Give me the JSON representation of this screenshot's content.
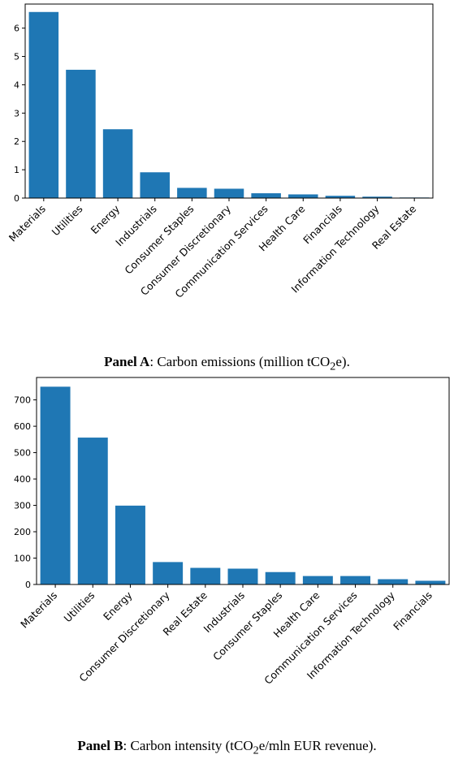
{
  "captions": {
    "a_label": "Panel A",
    "a_text": ": Carbon emissions (million tCO",
    "a_sub": "2",
    "a_tail": "e).",
    "b_label": "Panel B",
    "b_text": ": Carbon intensity (tCO",
    "b_sub": "2",
    "b_tail": "e/mln EUR revenue)."
  },
  "colors": {
    "bar": "#1f77b4"
  },
  "chart_data": [
    {
      "type": "bar",
      "title": "",
      "xlabel": "",
      "ylabel": "",
      "ylim": [
        0,
        6.85
      ],
      "yticks": [
        0,
        1,
        2,
        3,
        4,
        5,
        6
      ],
      "grid": false,
      "categories": [
        "Materials",
        "Utilities",
        "Energy",
        "Industrials",
        "Consumer Staples",
        "Consumer Discretionary",
        "Communication Services",
        "Health Care",
        "Financials",
        "Information Technology",
        "Real Estate"
      ],
      "values": [
        6.57,
        4.53,
        2.43,
        0.91,
        0.36,
        0.33,
        0.17,
        0.13,
        0.08,
        0.05,
        0.02
      ]
    },
    {
      "type": "bar",
      "title": "",
      "xlabel": "",
      "ylabel": "",
      "ylim": [
        0,
        785
      ],
      "yticks": [
        0,
        100,
        200,
        300,
        400,
        500,
        600,
        700
      ],
      "grid": false,
      "categories": [
        "Materials",
        "Utilities",
        "Energy",
        "Consumer Discretionary",
        "Real Estate",
        "Industrials",
        "Consumer Staples",
        "Health Care",
        "Communication Services",
        "Information Technology",
        "Financials"
      ],
      "values": [
        750,
        557,
        299,
        85,
        63,
        60,
        47,
        32,
        32,
        20,
        14
      ]
    }
  ]
}
